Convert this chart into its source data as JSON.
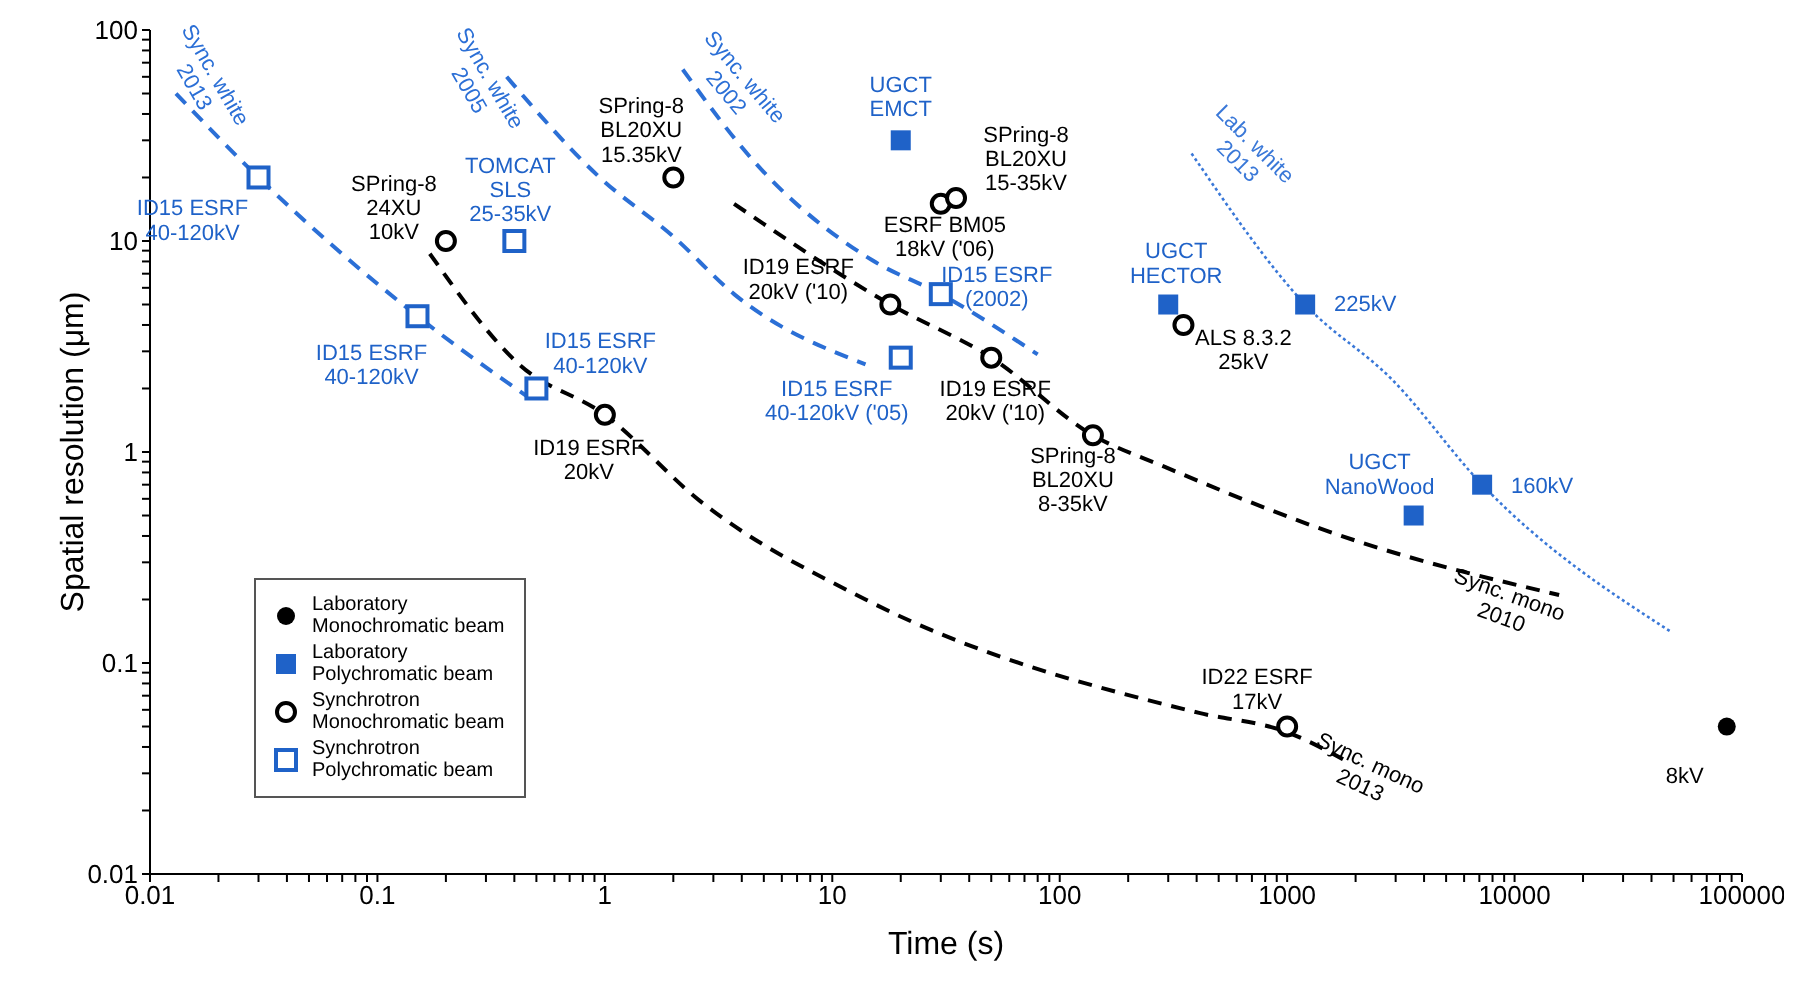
{
  "chart_data": {
    "type": "scatter",
    "xlabel": "Time (s)",
    "ylabel": "Spatial resolution (μm)",
    "log": "xy",
    "legend": "bottom left",
    "xlim": [
      0.01,
      100000
    ],
    "ylim": [
      0.01,
      100
    ],
    "xticks": [
      0.01,
      {
        "value": 0.02,
        "label": null
      },
      {
        "value": 0.03,
        "label": null
      },
      {
        "value": 0.04,
        "label": null
      },
      {
        "value": 0.05,
        "label": null
      },
      {
        "value": 0.06,
        "label": null
      },
      {
        "value": 0.07,
        "label": null
      },
      {
        "value": 0.08,
        "label": null
      },
      {
        "value": 0.09,
        "label": null
      },
      0.1,
      {
        "value": 0.2,
        "label": null
      },
      {
        "value": 0.3,
        "label": null
      },
      {
        "value": 0.4,
        "label": null
      },
      {
        "value": 0.5,
        "label": null
      },
      {
        "value": 0.6,
        "label": null
      },
      {
        "value": 0.7,
        "label": null
      },
      {
        "value": 0.8,
        "label": null
      },
      {
        "value": 0.9,
        "label": null
      },
      1,
      {
        "value": 2,
        "label": null
      },
      {
        "value": 3,
        "label": null
      },
      {
        "value": 4,
        "label": null
      },
      {
        "value": 5,
        "label": null
      },
      {
        "value": 6,
        "label": null
      },
      {
        "value": 7,
        "label": null
      },
      {
        "value": 8,
        "label": null
      },
      {
        "value": 9,
        "label": null
      },
      10,
      {
        "value": 20,
        "label": null
      },
      {
        "value": 30,
        "label": null
      },
      {
        "value": 40,
        "label": null
      },
      {
        "value": 50,
        "label": null
      },
      {
        "value": 60,
        "label": null
      },
      {
        "value": 70,
        "label": null
      },
      {
        "value": 80,
        "label": null
      },
      {
        "value": 90,
        "label": null
      },
      100,
      {
        "value": 200,
        "label": null
      },
      {
        "value": 300,
        "label": null
      },
      {
        "value": 400,
        "label": null
      },
      {
        "value": 500,
        "label": null
      },
      {
        "value": 600,
        "label": null
      },
      {
        "value": 700,
        "label": null
      },
      {
        "value": 800,
        "label": null
      },
      {
        "value": 900,
        "label": null
      },
      1000,
      {
        "value": 2000,
        "label": null
      },
      {
        "value": 3000,
        "label": null
      },
      {
        "value": 4000,
        "label": null
      },
      {
        "value": 5000,
        "label": null
      },
      {
        "value": 6000,
        "label": null
      },
      {
        "value": 7000,
        "label": null
      },
      {
        "value": 8000,
        "label": null
      },
      {
        "value": 9000,
        "label": null
      },
      10000,
      {
        "value": 20000,
        "label": null
      },
      {
        "value": 30000,
        "label": null
      },
      {
        "value": 40000,
        "label": null
      },
      {
        "value": 50000,
        "label": null
      },
      {
        "value": 60000,
        "label": null
      },
      {
        "value": 70000,
        "label": null
      },
      {
        "value": 80000,
        "label": null
      },
      {
        "value": 90000,
        "label": null
      },
      100000
    ],
    "yticks": [
      0.01,
      {
        "value": 0.02,
        "label": null
      },
      {
        "value": 0.03,
        "label": null
      },
      {
        "value": 0.04,
        "label": null
      },
      {
        "value": 0.05,
        "label": null
      },
      {
        "value": 0.06,
        "label": null
      },
      {
        "value": 0.07,
        "label": null
      },
      {
        "value": 0.08,
        "label": null
      },
      {
        "value": 0.09,
        "label": null
      },
      0.1,
      {
        "value": 0.2,
        "label": null
      },
      {
        "value": 0.3,
        "label": null
      },
      {
        "value": 0.4,
        "label": null
      },
      {
        "value": 0.5,
        "label": null
      },
      {
        "value": 0.6,
        "label": null
      },
      {
        "value": 0.7,
        "label": null
      },
      {
        "value": 0.8,
        "label": null
      },
      {
        "value": 0.9,
        "label": null
      },
      1,
      {
        "value": 2,
        "label": null
      },
      {
        "value": 3,
        "label": null
      },
      {
        "value": 4,
        "label": null
      },
      {
        "value": 5,
        "label": null
      },
      {
        "value": 6,
        "label": null
      },
      {
        "value": 7,
        "label": null
      },
      {
        "value": 8,
        "label": null
      },
      {
        "value": 9,
        "label": null
      },
      10,
      {
        "value": 20,
        "label": null
      },
      {
        "value": 30,
        "label": null
      },
      {
        "value": 40,
        "label": null
      },
      {
        "value": 50,
        "label": null
      },
      {
        "value": 60,
        "label": null
      },
      {
        "value": 70,
        "label": null
      },
      {
        "value": 80,
        "label": null
      },
      {
        "value": 90,
        "label": null
      },
      100
    ],
    "series": [
      {
        "type": "line",
        "name": "Sync. white\n2013",
        "color": "#2b6fd6",
        "line_style": "dashed",
        "x": [
          0.013,
          0.03,
          0.15,
          0.45
        ],
        "values": [
          50,
          20,
          4.4,
          1.85
        ]
      },
      {
        "type": "line",
        "name": "Sync. white\n2005",
        "color": "#2b6fd6",
        "line_style": "dashed",
        "x": [
          0.37,
          0.95,
          2,
          3.7,
          14
        ],
        "values": [
          60,
          20,
          10.5,
          5.6,
          2.6
        ]
      },
      {
        "type": "line",
        "name": "Sync. white\n2002",
        "color": "#2b6fd6",
        "line_style": "dashed",
        "x": [
          2.2,
          4.5,
          15,
          30,
          80
        ],
        "values": [
          65,
          24,
          8.1,
          5.6,
          2.9
        ]
      },
      {
        "type": "line",
        "name": "Lab. white\n2013",
        "color": "#3a78d8",
        "line_style": "dotted",
        "x": [
          380,
          1200,
          2900,
          7200,
          49000
        ],
        "values": [
          26,
          5,
          2.2,
          0.7,
          0.14
        ]
      },
      {
        "type": "line",
        "name": "Sync. mono\n2010",
        "color": "#000000",
        "line_style": "dashed",
        "x": [
          3.7,
          18,
          50,
          140,
          290,
          2000,
          15700
        ],
        "values": [
          15,
          5,
          2.8,
          1.2,
          0.85,
          0.38,
          0.21
        ]
      },
      {
        "type": "line",
        "name": "Sync. mono\n2013",
        "color": "#000000",
        "line_style": "dashed",
        "x": [
          0.17,
          0.42,
          1,
          2.6,
          14,
          410,
          1000,
          1760
        ],
        "values": [
          8.7,
          2.6,
          1.5,
          0.59,
          0.2,
          0.058,
          0.047,
          0.035
        ]
      },
      {
        "name": "Laboratory\nMonochromatic beam",
        "color": "#000000",
        "marker": "circle",
        "x": [
          85700
        ],
        "values": [
          0.05
        ]
      },
      {
        "name": "Laboratory\nPolychromatic beam",
        "color": "#1f62c8",
        "marker": "square",
        "x": [
          20,
          300,
          1200,
          7200,
          3600
        ],
        "values": [
          30,
          5,
          5,
          0.7,
          0.5
        ]
      },
      {
        "name": "Synchrotron\nMonochromatic beam",
        "color": "#000000",
        "marker": "circle",
        "x": [
          0.2,
          1,
          2,
          30,
          35,
          18,
          50,
          140,
          350,
          1000
        ],
        "values": [
          10,
          1.5,
          20,
          15,
          16,
          5,
          2.8,
          1.2,
          4,
          0.05
        ]
      },
      {
        "name": "Synchrotron\nPolychromatic beam",
        "color": "#1f62c8",
        "marker": "square",
        "x": [
          0.03,
          0.15,
          0.5,
          0.4,
          20,
          30
        ],
        "values": [
          20,
          4.4,
          2,
          10,
          2.8,
          5.6
        ]
      }
    ],
    "annotations": [
      {
        "text": "ID15 ESRF\n40-120kV",
        "x": 0.03,
        "y": 20
      },
      {
        "text": "ID15 ESRF\n40-120kV",
        "x": 0.15,
        "y": 4.4
      },
      {
        "text": "ID15 ESRF\n40-120kV",
        "x": 0.5,
        "y": 2
      },
      {
        "text": "TOMCAT\nSLS\n25-35kV",
        "x": 0.4,
        "y": 10
      },
      {
        "text": "SPring-8\n24XU\n10kV",
        "x": 0.2,
        "y": 10
      },
      {
        "text": "ID19 ESRF\n20kV",
        "x": 1,
        "y": 1.5
      },
      {
        "text": "SPring-8\nBL20XU\n15.35kV",
        "x": 2,
        "y": 20
      },
      {
        "text": "UGCT\nEMCT",
        "x": 20,
        "y": 30
      },
      {
        "text": "SPring-8\nBL20XU\n15-35kV",
        "x": 35,
        "y": 16
      },
      {
        "text": "ESRF BM05\n18kV ('06)",
        "x": 30,
        "y": 15
      },
      {
        "text": "ID15 ESRF\n(2002)",
        "x": 30,
        "y": 5.6
      },
      {
        "text": "ID19 ESRF\n20kV ('10)",
        "x": 18,
        "y": 5
      },
      {
        "text": "ID15 ESRF\n40-120kV ('05)",
        "x": 20,
        "y": 2.8
      },
      {
        "text": "ID19 ESRF\n20kV ('10)",
        "x": 50,
        "y": 2.8
      },
      {
        "text": "SPring-8\nBL20XU\n8-35kV",
        "x": 140,
        "y": 1.2
      },
      {
        "text": "UGCT\nHECTOR",
        "x": 300,
        "y": 5
      },
      {
        "text": "ALS 8.3.2\n25kV",
        "x": 350,
        "y": 4
      },
      {
        "text": "225kV",
        "x": 1200,
        "y": 5
      },
      {
        "text": "UGCT\nNanoWood",
        "x": 3600,
        "y": 0.5
      },
      {
        "text": "160kV",
        "x": 7200,
        "y": 0.7
      },
      {
        "text": "ID22 ESRF\n17kV",
        "x": 1000,
        "y": 0.05
      },
      {
        "text": "8kV",
        "x": 85700,
        "y": 0.05
      }
    ]
  }
}
